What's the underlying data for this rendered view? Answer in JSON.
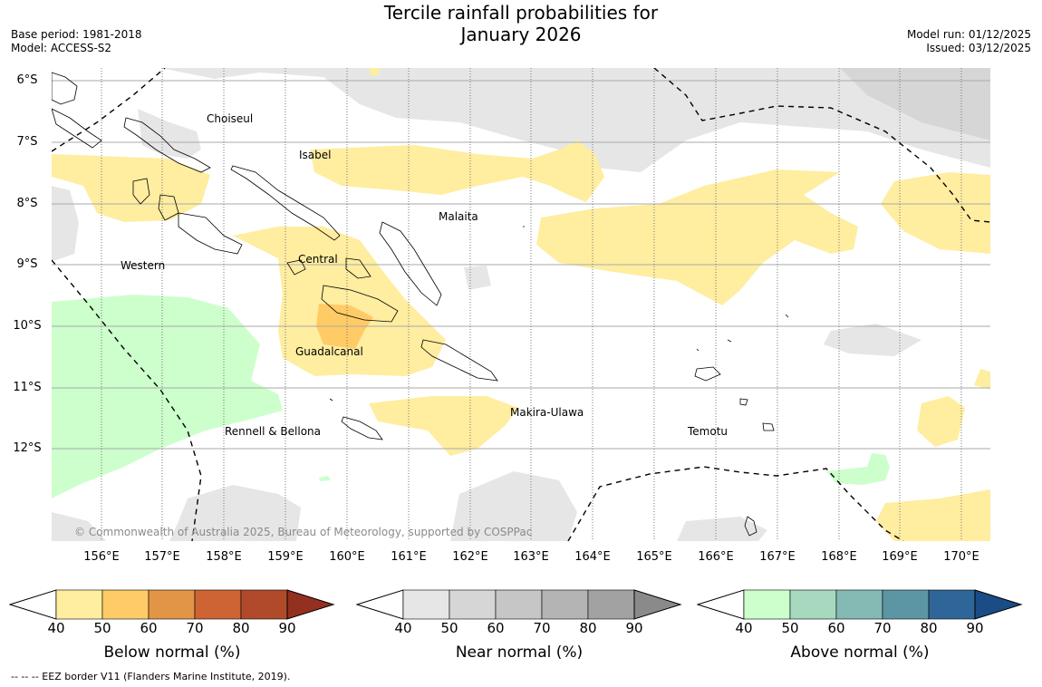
{
  "header": {
    "title_line1": "Tercile rainfall probabilities for",
    "title_line2": "January 2026",
    "base_period": "Base period: 1981-2018",
    "model": "Model: ACCESS-S2",
    "model_run": "Model run: 01/12/2025",
    "issued": "Issued: 03/12/2025"
  },
  "map": {
    "lat_labels": [
      "6°S",
      "7°S",
      "8°S",
      "9°S",
      "10°S",
      "11°S",
      "12°S"
    ],
    "lon_labels": [
      "156°E",
      "157°E",
      "158°E",
      "159°E",
      "160°E",
      "161°E",
      "162°E",
      "163°E",
      "164°E",
      "165°E",
      "166°E",
      "167°E",
      "168°E",
      "169°E",
      "170°E"
    ],
    "regions": {
      "choiseul": "Choiseul",
      "isabel": "Isabel",
      "malaita": "Malaita",
      "western": "Western",
      "central": "Central",
      "guadalcanal": "Guadalcanal",
      "makira": "Makira-Ulawa",
      "rennell": "Rennell & Bellona",
      "temotu": "Temotu"
    },
    "copyright": "© Commonwealth of Australia 2025, Bureau of Meteorology, supported by COSPPac"
  },
  "colorbars": {
    "below": {
      "title": "Below normal (%)",
      "ticks": [
        "40",
        "50",
        "60",
        "70",
        "80",
        "90"
      ],
      "colors": [
        "#ffeda0",
        "#fecb66",
        "#e29547",
        "#ce6334",
        "#b04a2a",
        "#943020"
      ]
    },
    "near": {
      "title": "Near normal (%)",
      "ticks": [
        "40",
        "50",
        "60",
        "70",
        "80",
        "90"
      ],
      "colors": [
        "#e6e6e6",
        "#d6d6d6",
        "#c6c6c6",
        "#b4b4b4",
        "#a2a2a2",
        "#8a8a8a"
      ]
    },
    "above": {
      "title": "Above normal (%)",
      "ticks": [
        "40",
        "50",
        "60",
        "70",
        "80",
        "90"
      ],
      "colors": [
        "#ccffcc",
        "#a6d9be",
        "#84b9b4",
        "#5c96a4",
        "#2f6699",
        "#1a4d85"
      ]
    }
  },
  "footer": {
    "eez_note": "--  --  -- EEZ border V11 (Flanders Marine Institute, 2019)."
  }
}
